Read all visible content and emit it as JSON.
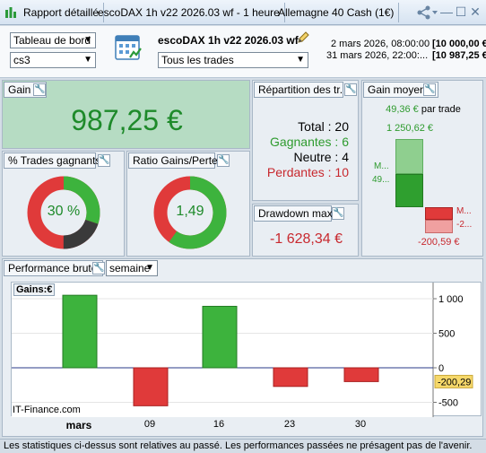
{
  "window": {
    "tabs": [
      {
        "label": "Rapport détaillé"
      },
      {
        "label": "escoDAX 1h v22 2026.03 wf - 1 heure"
      },
      {
        "label": "Allemagne 40 Cash (1€)"
      }
    ],
    "min_glyph": "—",
    "max_glyph": "☐",
    "close_glyph": "✕"
  },
  "header": {
    "view_select": "Tableau de bord",
    "account_select": "cs3",
    "strategy_name": "escoDAX 1h v22 2026.03 wf",
    "trades_select": "Tous les trades",
    "period_start": "2 mars 2026, 08:00:00",
    "period_end": "31 mars 2026, 22:00:...",
    "capital_start": "[10 000,00 €",
    "capital_end": "[10 987,25 €"
  },
  "gain": {
    "title": "Gain",
    "value": "987,25 €"
  },
  "repartition": {
    "title": "Répartition des tr...",
    "total_label": "Total",
    "total_value": "20",
    "win_label": "Gagnantes",
    "win_value": "6",
    "neutral_label": "Neutre",
    "neutral_value": "4",
    "loss_label": "Perdantes",
    "loss_value": "10"
  },
  "gain_moyen": {
    "title": "Gain moyen",
    "per_trade": "49,36 €",
    "per_trade_suffix": "par trade",
    "max_gain": "1 250,62 €",
    "gain_label_top": "M...",
    "gain_label_bottom": "49...",
    "loss_label_top": "M...",
    "loss_label_bottom": "-2...",
    "max_loss": "-200,59 €"
  },
  "pct_trades": {
    "title": "% Trades gagnants",
    "value": "30 %",
    "win_fraction": 0.3,
    "neutral_fraction": 0.2
  },
  "ratio": {
    "title": "Ratio Gains/Pertes",
    "value": "1,49",
    "win_fraction": 0.598
  },
  "drawdown": {
    "title": "Drawdown max",
    "value": "-1 628,34 €"
  },
  "performance": {
    "title": "Performance brute",
    "period_select": "semaine",
    "series_label": "Gains:",
    "series_unit": "€",
    "watermark": "IT-Finance.com",
    "last_value_label": "-200,29"
  },
  "chart_data": {
    "type": "bar",
    "categories": [
      "mars",
      "09",
      "16",
      "23",
      "30"
    ],
    "values": [
      1050,
      -550,
      890,
      -270,
      -200
    ],
    "ylim": [
      -650,
      1100
    ],
    "yticks": [
      1000,
      500,
      0,
      -500
    ],
    "ytick_labels": [
      "1 000",
      "500",
      "0",
      "-500"
    ],
    "last_value": -200.29,
    "positive_color": "#3db33d",
    "negative_color": "#e03a3a"
  },
  "footer": {
    "text": "Les statistiques ci-dessus sont relatives au passé. Les performances passées ne présagent pas de l'avenir."
  },
  "colors": {
    "green": "#2e9b2e",
    "red": "#c8282e",
    "dark": "#3a3a3a"
  }
}
